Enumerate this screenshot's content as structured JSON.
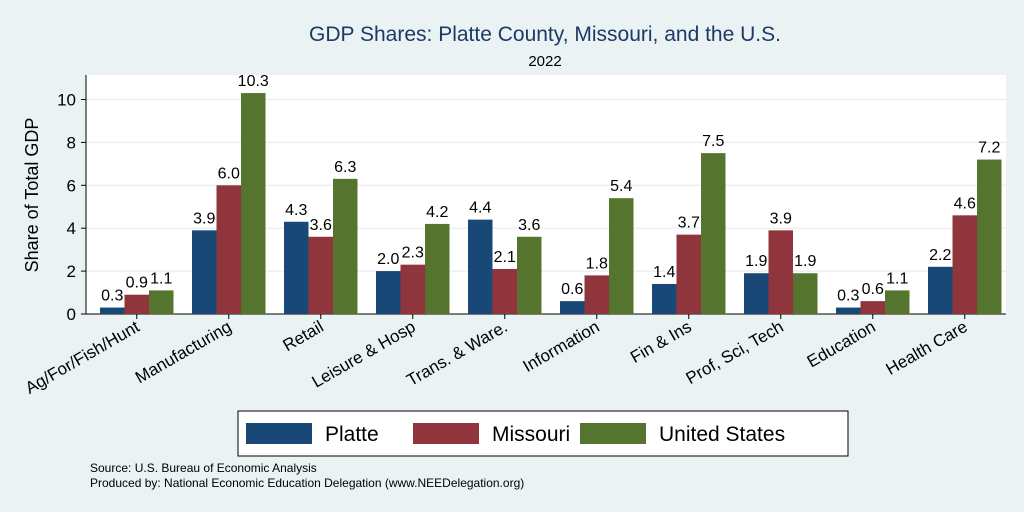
{
  "chart_data": {
    "type": "bar",
    "title": "GDP Shares: Platte County, Missouri, and the U.S.",
    "subtitle": "2022",
    "ylabel": "Share of Total GDP",
    "xlabel": "",
    "ylim": [
      0,
      11
    ],
    "yticks": [
      0,
      2,
      4,
      6,
      8,
      10
    ],
    "grid": true,
    "legend_position": "bottom",
    "categories": [
      "Ag/For/Fish/Hunt",
      "Manufacturing",
      "Retail",
      "Leisure & Hosp",
      "Trans. & Ware.",
      "Information",
      "Fin & Ins",
      "Prof, Sci, Tech",
      "Education",
      "Health Care"
    ],
    "series": [
      {
        "name": "Platte",
        "color": "#1a4876",
        "values": [
          0.3,
          3.9,
          4.3,
          2.0,
          4.4,
          0.6,
          1.4,
          1.9,
          0.3,
          2.2
        ]
      },
      {
        "name": "Missouri",
        "color": "#90353b",
        "values": [
          0.9,
          6.0,
          3.6,
          2.3,
          2.1,
          1.8,
          3.7,
          3.9,
          0.6,
          4.6
        ]
      },
      {
        "name": "United States",
        "color": "#55752f",
        "values": [
          1.1,
          10.3,
          6.3,
          4.2,
          3.6,
          5.4,
          7.5,
          1.9,
          1.1,
          7.2
        ]
      }
    ],
    "data_labels": [
      [
        "0.3",
        "3.9",
        "4.3",
        "2.0",
        "4.4",
        "0.6",
        "1.4",
        "1.9",
        "0.3",
        "2.2"
      ],
      [
        "0.9",
        "6.0",
        "3.6",
        "2.3",
        "2.1",
        "1.8",
        "3.7",
        "3.9",
        "0.6",
        "4.6"
      ],
      [
        "1.1",
        "10.3",
        "6.3",
        "4.2",
        "3.6",
        "5.4",
        "7.5",
        "1.9",
        "1.1",
        "7.2"
      ]
    ]
  },
  "footer": {
    "source": "Source: U.S. Bureau of Economic Analysis",
    "produced_by": "Produced by: National Economic Education Delegation (www.NEEDelegation.org)"
  }
}
